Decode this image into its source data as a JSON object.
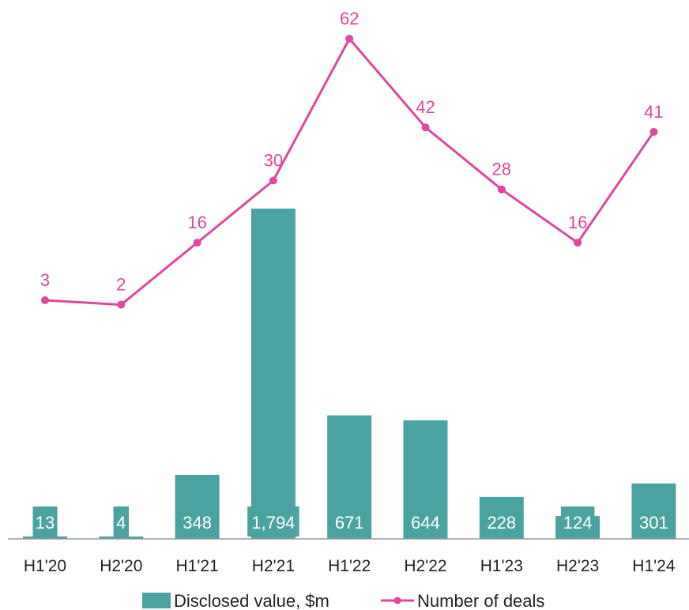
{
  "chart_data": {
    "type": "bar+line",
    "categories": [
      "H1'20",
      "H2'20",
      "H1'21",
      "H2'21",
      "H1'22",
      "H2'22",
      "H1'23",
      "H2'23",
      "H1'24"
    ],
    "series": [
      {
        "name": "Disclosed value, $m",
        "type": "bar",
        "color": "#4aa3a0",
        "values": [
          13,
          4,
          348,
          1794,
          671,
          644,
          228,
          124,
          301
        ],
        "labels": [
          "13",
          "4",
          "348",
          "1,794",
          "671",
          "644",
          "228",
          "124",
          "301"
        ]
      },
      {
        "name": "Number of deals",
        "type": "line",
        "color": "#e0479e",
        "values": [
          3,
          2,
          16,
          30,
          62,
          42,
          28,
          16,
          41
        ],
        "labels": [
          "3",
          "2",
          "16",
          "30",
          "62",
          "42",
          "28",
          "16",
          "41"
        ]
      }
    ],
    "legend": {
      "position": "bottom"
    },
    "grid": false
  }
}
